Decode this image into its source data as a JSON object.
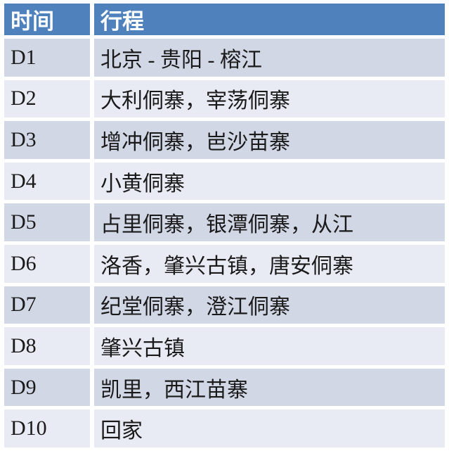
{
  "table": {
    "columns": [
      {
        "label": "时间"
      },
      {
        "label": "行程"
      }
    ],
    "rows": [
      {
        "day": "D1",
        "itinerary": "北京 - 贵阳 - 榕江"
      },
      {
        "day": "D2",
        "itinerary": "大利侗寨，宰荡侗寨"
      },
      {
        "day": "D3",
        "itinerary": "增冲侗寨，岜沙苗寨"
      },
      {
        "day": "D4",
        "itinerary": "小黄侗寨"
      },
      {
        "day": "D5",
        "itinerary": "占里侗寨，银潭侗寨，从江"
      },
      {
        "day": "D6",
        "itinerary": "洛香，肇兴古镇，唐安侗寨"
      },
      {
        "day": "D7",
        "itinerary": "纪堂侗寨，澄江侗寨"
      },
      {
        "day": "D8",
        "itinerary": "肇兴古镇"
      },
      {
        "day": "D9",
        "itinerary": "凯里，西江苗寨"
      },
      {
        "day": "D10",
        "itinerary": "回家"
      }
    ]
  },
  "colors": {
    "header_bg": "#4F81BD",
    "header_text": "#FFFFFF",
    "row_band_dark": "#D2D7E6",
    "row_band_light": "#E9EBF4",
    "gridline": "#FFFFFF",
    "body_text": "#1A1A1A"
  },
  "chart_data": {
    "type": "table",
    "title": "",
    "columns": [
      "时间",
      "行程"
    ],
    "rows": [
      [
        "D1",
        "北京 - 贵阳 - 榕江"
      ],
      [
        "D2",
        "大利侗寨，宰荡侗寨"
      ],
      [
        "D3",
        "增冲侗寨，岜沙苗寨"
      ],
      [
        "D4",
        "小黄侗寨"
      ],
      [
        "D5",
        "占里侗寨，银潭侗寨，从江"
      ],
      [
        "D6",
        "洛香，肇兴古镇，唐安侗寨"
      ],
      [
        "D7",
        "纪堂侗寨，澄江侗寨"
      ],
      [
        "D8",
        "肇兴古镇"
      ],
      [
        "D9",
        "凯里，西江苗寨"
      ],
      [
        "D10",
        "回家"
      ]
    ],
    "layout": {
      "header_row": true,
      "banded_rows": true,
      "legend": "none",
      "grid": "white-separators"
    }
  }
}
